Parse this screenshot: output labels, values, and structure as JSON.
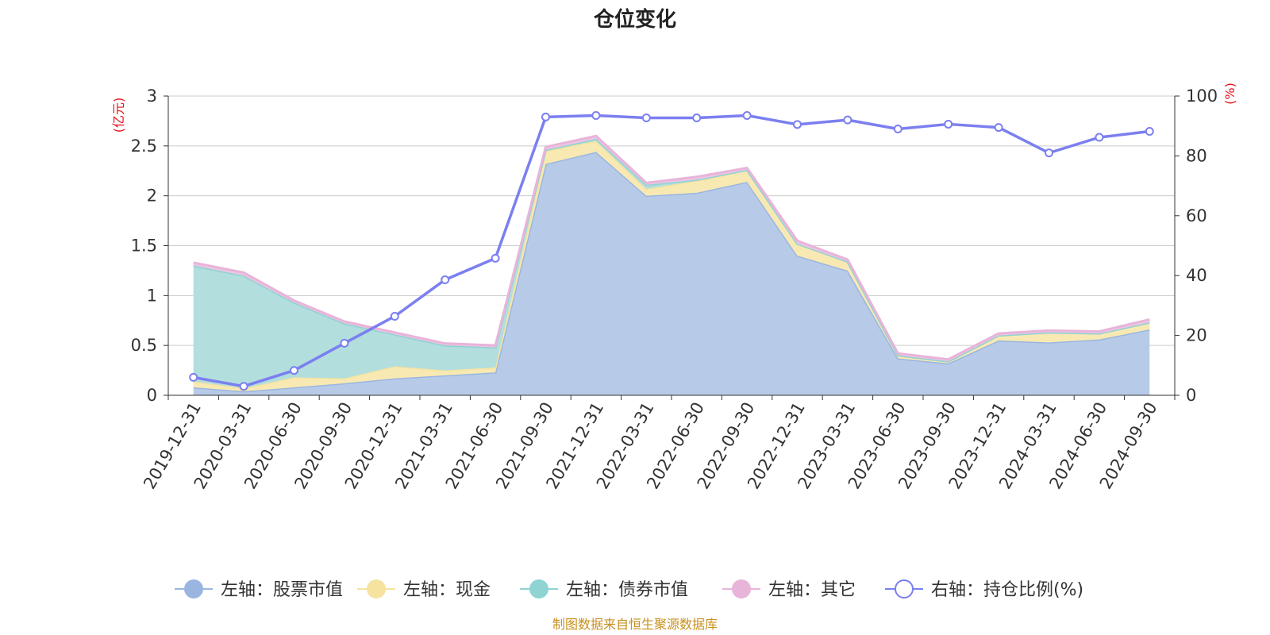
{
  "chart_data": {
    "type": "area",
    "title": "仓位变化",
    "source": "制图数据来自恒生聚源数据库",
    "left_axis": {
      "unit": "(亿元)",
      "ylim": [
        0,
        3
      ],
      "ticks": [
        "0",
        "0.5",
        "1",
        "1.5",
        "2",
        "2.5",
        "3"
      ]
    },
    "right_axis": {
      "unit": "(%)",
      "ylim": [
        0,
        100
      ],
      "ticks": [
        "0",
        "20",
        "40",
        "60",
        "80",
        "100"
      ]
    },
    "categories": [
      "2019-12-31",
      "2020-03-31",
      "2020-06-30",
      "2020-09-30",
      "2020-12-31",
      "2021-03-31",
      "2021-06-30",
      "2021-09-30",
      "2021-12-31",
      "2022-03-31",
      "2022-06-30",
      "2022-09-30",
      "2022-12-31",
      "2023-03-31",
      "2023-06-30",
      "2023-09-30",
      "2023-12-31",
      "2024-03-31",
      "2024-06-30",
      "2024-09-30"
    ],
    "series": [
      {
        "name": "左轴：股票市值",
        "axis": "left",
        "kind": "stacked-area",
        "color": "#9ab6e0",
        "fill": "#b7cbe9",
        "values": [
          0.08,
          0.04,
          0.08,
          0.12,
          0.17,
          0.2,
          0.23,
          2.32,
          2.44,
          2.0,
          2.03,
          2.14,
          1.4,
          1.25,
          0.37,
          0.32,
          0.55,
          0.53,
          0.56,
          0.66
        ]
      },
      {
        "name": "左轴：现金",
        "axis": "left",
        "kind": "stacked-area",
        "color": "#f6e3a0",
        "fill": "#f8e9b3",
        "values": [
          0.06,
          0.03,
          0.1,
          0.05,
          0.12,
          0.05,
          0.05,
          0.13,
          0.11,
          0.07,
          0.12,
          0.12,
          0.12,
          0.09,
          0.03,
          0.02,
          0.05,
          0.1,
          0.06,
          0.07
        ]
      },
      {
        "name": "左轴：债券市值",
        "axis": "left",
        "kind": "stacked-area",
        "color": "#8fd3d3",
        "fill": "#b2dede",
        "values": [
          1.16,
          1.13,
          0.75,
          0.55,
          0.32,
          0.25,
          0.2,
          0.01,
          0.02,
          0.04,
          0.01,
          0.0,
          0.0,
          0.0,
          0.0,
          0.0,
          0.0,
          0.0,
          0.0,
          0.0
        ]
      },
      {
        "name": "左轴：其它",
        "axis": "left",
        "kind": "stacked-area",
        "color": "#e8b4da",
        "fill": "#ecc6e2",
        "values": [
          0.03,
          0.03,
          0.02,
          0.02,
          0.02,
          0.02,
          0.02,
          0.03,
          0.03,
          0.02,
          0.03,
          0.02,
          0.03,
          0.02,
          0.02,
          0.02,
          0.02,
          0.02,
          0.02,
          0.03
        ]
      },
      {
        "name": "右轴：持仓比例(%)",
        "axis": "right",
        "kind": "line",
        "color": "#7b7ff0",
        "values": [
          6,
          3,
          8.3,
          17.4,
          26.4,
          38.6,
          45.8,
          93,
          93.5,
          92.7,
          92.7,
          93.5,
          90.5,
          92,
          89,
          90.6,
          89.5,
          81,
          86.2,
          88.2
        ]
      }
    ]
  }
}
